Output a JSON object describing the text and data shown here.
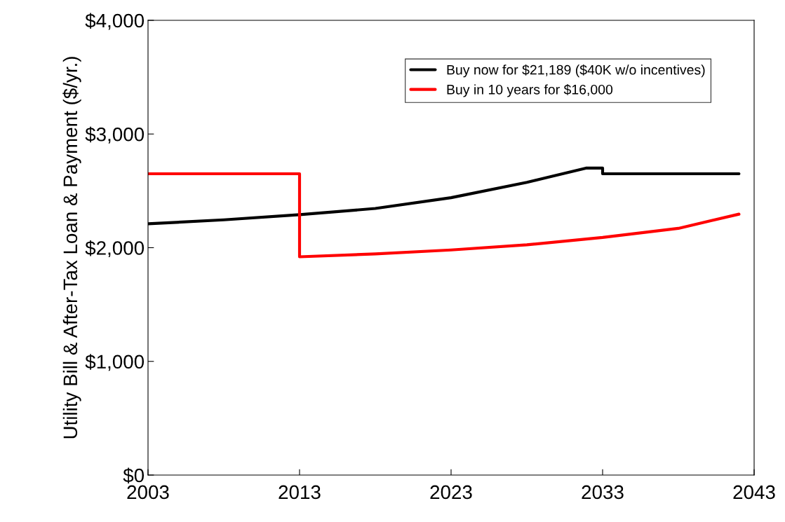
{
  "chart_data": {
    "type": "line",
    "ylabel": "Utility Bill & After-Tax Loan & Payment ($/yr.)",
    "xlim": [
      2003,
      2043
    ],
    "xticks": [
      2003,
      2013,
      2023,
      2033,
      2043
    ],
    "ylim": [
      0,
      4000
    ],
    "yticks": [
      {
        "value": 0,
        "label": "$0"
      },
      {
        "value": 1000,
        "label": "$1,000"
      },
      {
        "value": 2000,
        "label": "$2,000"
      },
      {
        "value": 3000,
        "label": "$3,000"
      },
      {
        "value": 4000,
        "label": "$4,000"
      }
    ],
    "grid": false,
    "legend": "top right",
    "marker": "none",
    "line_style": "solid",
    "series": [
      {
        "name": "Buy now for $21,189 ($40K w/o incentives)",
        "color": "#000000",
        "x": [
          2003,
          2008,
          2013,
          2018,
          2023,
          2028,
          2031.9,
          2033,
          2033,
          2042
        ],
        "values": [
          2210,
          2245,
          2290,
          2345,
          2440,
          2575,
          2700,
          2700,
          2650,
          2650
        ]
      },
      {
        "name": "Buy in 10 years for $16,000",
        "color": "#ff0000",
        "x": [
          2003,
          2013,
          2013,
          2018,
          2023,
          2028,
          2033,
          2038,
          2042
        ],
        "values": [
          2650,
          2650,
          1920,
          1945,
          1980,
          2025,
          2090,
          2170,
          2295
        ]
      }
    ]
  }
}
